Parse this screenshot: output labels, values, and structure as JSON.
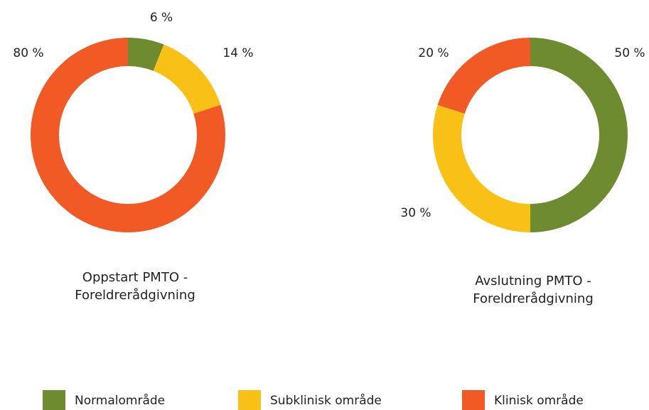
{
  "chart_data": [
    {
      "type": "pie",
      "donut": true,
      "title": "Oppstart PMTO - Foreldrerådgivning",
      "categories": [
        "Normalområde",
        "Subklinisk område",
        "Klinisk område"
      ],
      "values": [
        6,
        14,
        80
      ],
      "value_labels": [
        "6 %",
        "14 %",
        "80 %"
      ],
      "colors": [
        "#6e8b2f",
        "#f9c116",
        "#f15a24"
      ],
      "legend": "bottom"
    },
    {
      "type": "pie",
      "donut": true,
      "title": "Avslutning PMTO - Foreldrerådgivning",
      "categories": [
        "Normalområde",
        "Subklinisk område",
        "Klinisk område"
      ],
      "values": [
        50,
        30,
        20
      ],
      "value_labels": [
        "50 %",
        "30 %",
        "20 %"
      ],
      "colors": [
        "#6e8b2f",
        "#f9c116",
        "#f15a24"
      ],
      "legend": "bottom"
    }
  ]
}
